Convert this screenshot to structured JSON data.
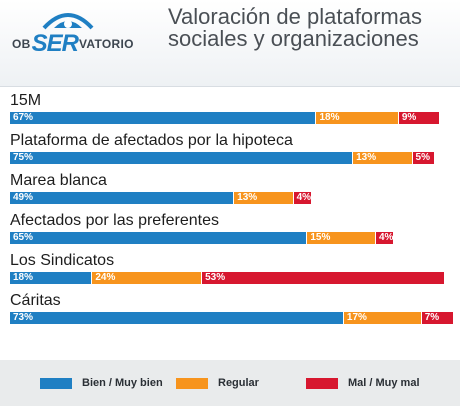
{
  "logo": {
    "pre": "OB",
    "mid": "SER",
    "post": "VATORIO"
  },
  "title": {
    "line1": "Valoración de plataformas",
    "line2": "sociales y organizaciones"
  },
  "colors": {
    "bien": "#1f7fc3",
    "regular": "#f7941d",
    "mal": "#d7172f"
  },
  "chart_data": {
    "type": "bar",
    "orientation": "horizontal",
    "stacked": true,
    "categories": [
      "15M",
      "Plataforma de afectados por la hipoteca",
      "Marea blanca",
      "Afectados por las preferentes",
      "Los Sindicatos",
      "Cáritas"
    ],
    "series": [
      {
        "name": "Bien / Muy bien",
        "values": [
          67,
          75,
          49,
          65,
          18,
          73
        ],
        "labels": [
          "67%",
          "75%",
          "49%",
          "65%",
          "18%",
          "73%"
        ]
      },
      {
        "name": "Regular",
        "values": [
          18,
          13,
          13,
          15,
          24,
          17
        ],
        "labels": [
          "18%",
          "13%",
          "13%",
          "15%",
          "24%",
          "17%"
        ]
      },
      {
        "name": "Mal / Muy mal",
        "values": [
          9,
          5,
          4,
          4,
          53,
          7
        ],
        "labels": [
          "9%",
          "5%",
          "4%",
          "4%",
          "53%",
          "7%"
        ]
      }
    ],
    "xlim": [
      0,
      94
    ],
    "legend": "bottom"
  }
}
